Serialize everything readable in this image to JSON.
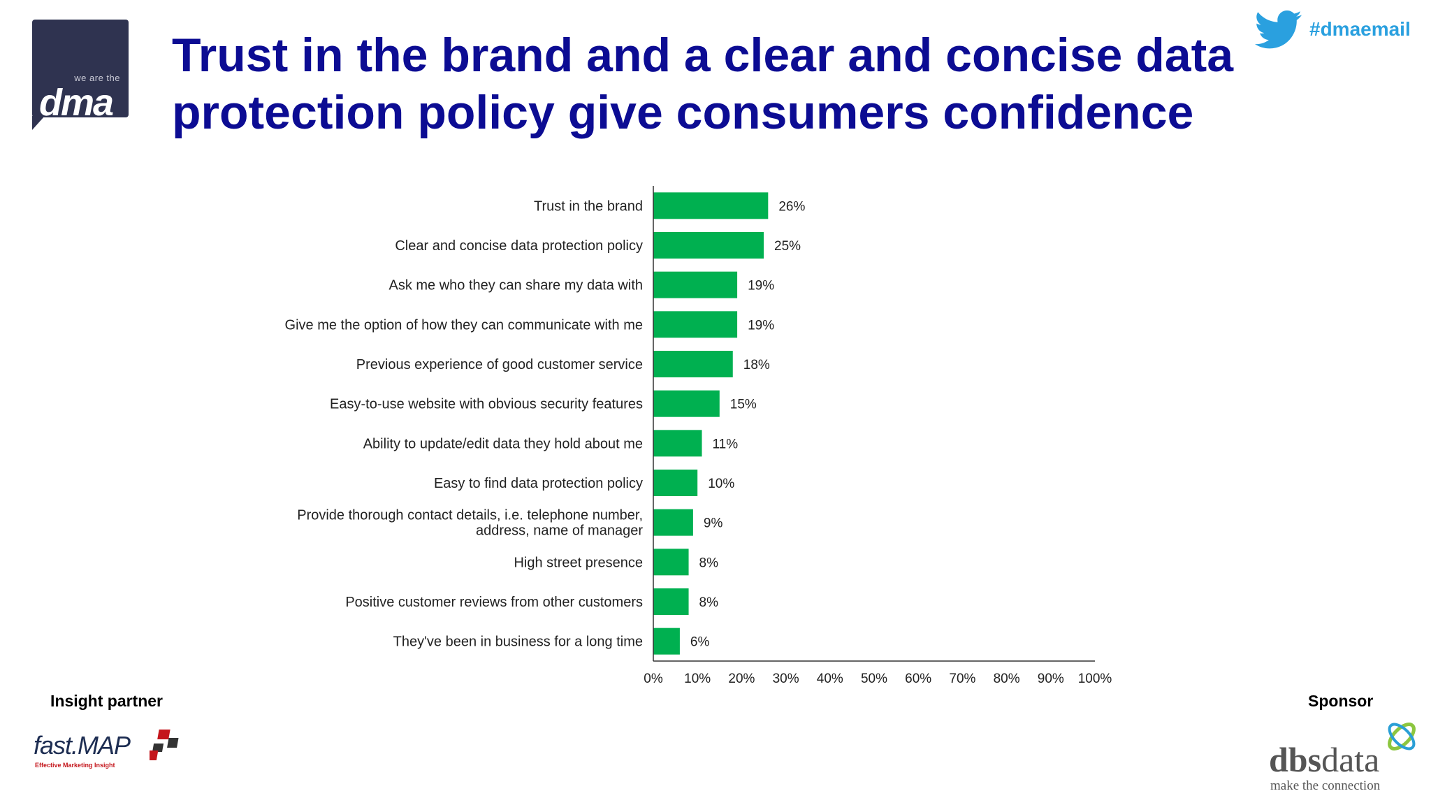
{
  "header": {
    "logo_tagline": "we are the",
    "logo_word": "dma",
    "title_line1": "Trust in the brand and a clear and concise data",
    "title_line2": "protection policy give consumers confidence",
    "hashtag": "#dmaemail"
  },
  "colors": {
    "bar": "#00b050",
    "title": "#0c0c93",
    "hashtag": "#2aa0df",
    "logo_bg": "#2f3350"
  },
  "icons": [
    "twitter-bird-icon",
    "fastmap-cube-icon",
    "dbs-swirl-icon"
  ],
  "chart_data": {
    "type": "bar",
    "orientation": "horizontal",
    "categories": [
      [
        "Trust in the brand"
      ],
      [
        "Clear and concise data protection policy"
      ],
      [
        "Ask me who they can share my data with"
      ],
      [
        "Give me the option of how they can communicate with me"
      ],
      [
        "Previous experience of good customer service"
      ],
      [
        "Easy-to-use website with obvious security features"
      ],
      [
        "Ability to update/edit data they hold about me"
      ],
      [
        "Easy to find data protection policy"
      ],
      [
        "Provide thorough contact details, i.e. telephone number,",
        "address, name of manager"
      ],
      [
        "High street presence"
      ],
      [
        "Positive customer reviews from other customers"
      ],
      [
        "They've been in business for a long time"
      ]
    ],
    "values": [
      26,
      25,
      19,
      19,
      18,
      15,
      11,
      10,
      9,
      8,
      8,
      6
    ],
    "value_labels": [
      "26%",
      "25%",
      "19%",
      "19%",
      "18%",
      "15%",
      "11%",
      "10%",
      "9%",
      "8%",
      "8%",
      "6%"
    ],
    "xlim": [
      0,
      100
    ],
    "x_ticks": [
      0,
      10,
      20,
      30,
      40,
      50,
      60,
      70,
      80,
      90,
      100
    ],
    "x_tick_labels": [
      "0%",
      "10%",
      "20%",
      "30%",
      "40%",
      "50%",
      "60%",
      "70%",
      "80%",
      "90%",
      "100%"
    ],
    "grid": false,
    "legend": "none"
  },
  "footer": {
    "insight_label": "Insight partner",
    "sponsor_label": "Sponsor",
    "fastmap_word": "fast.MAP",
    "fastmap_tagline": "Effective Marketing Insight",
    "dbs_word_bold": "dbs",
    "dbs_word_rest": "data",
    "dbs_tagline": "make the connection"
  }
}
